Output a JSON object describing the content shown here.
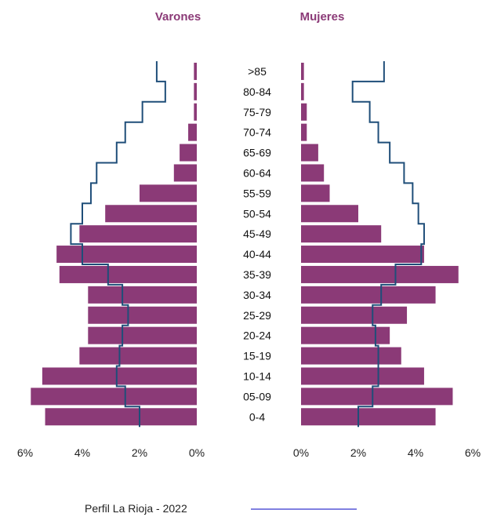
{
  "colors": {
    "bar": "#8B3A77",
    "line": "#1F4E79",
    "header": "#8B3A77",
    "legend_line": "#8080E0"
  },
  "chart_data": {
    "type": "bar",
    "orientation": "horizontal",
    "headers": {
      "left": "Varones",
      "right": "Mujeres"
    },
    "categories": [
      ">85",
      "80-84",
      "75-79",
      "70-74",
      "65-69",
      "60-64",
      "55-59",
      "50-54",
      "45-49",
      "40-44",
      "35-39",
      "30-34",
      "25-29",
      "20-24",
      "15-19",
      "10-14",
      "05-09",
      "0-4"
    ],
    "series": [
      {
        "side": "left",
        "kind": "bar",
        "values": [
          0.1,
          0.1,
          0.1,
          0.3,
          0.6,
          0.8,
          2.0,
          3.2,
          4.1,
          4.9,
          4.8,
          3.8,
          3.8,
          3.8,
          4.1,
          5.4,
          5.8,
          5.3
        ]
      },
      {
        "side": "right",
        "kind": "bar",
        "values": [
          0.1,
          0.1,
          0.2,
          0.2,
          0.6,
          0.8,
          1.0,
          2.0,
          2.8,
          4.3,
          5.5,
          4.7,
          3.7,
          3.1,
          3.5,
          4.3,
          5.3,
          4.7
        ]
      },
      {
        "side": "left",
        "kind": "line",
        "name": "Perfil La Rioja - 2022",
        "values": [
          1.4,
          1.1,
          1.9,
          2.5,
          2.8,
          3.5,
          3.7,
          4.0,
          4.4,
          4.0,
          3.1,
          2.6,
          2.4,
          2.6,
          2.7,
          2.8,
          2.5,
          2.0
        ]
      },
      {
        "side": "right",
        "kind": "line",
        "name": "Perfil La Rioja - 2022",
        "values": [
          2.9,
          1.8,
          2.4,
          2.7,
          3.1,
          3.6,
          3.9,
          4.1,
          4.3,
          4.2,
          3.3,
          2.8,
          2.5,
          2.6,
          2.7,
          2.7,
          2.5,
          2.0
        ]
      }
    ],
    "x_ticks_left": [
      "6%",
      "4%",
      "2%",
      "0%"
    ],
    "x_ticks_right": [
      "0%",
      "2%",
      "4%",
      "6%"
    ],
    "xlim": [
      0,
      6
    ],
    "legend": {
      "label": "Perfil La Rioja - 2022",
      "position": "bottom-center"
    }
  }
}
